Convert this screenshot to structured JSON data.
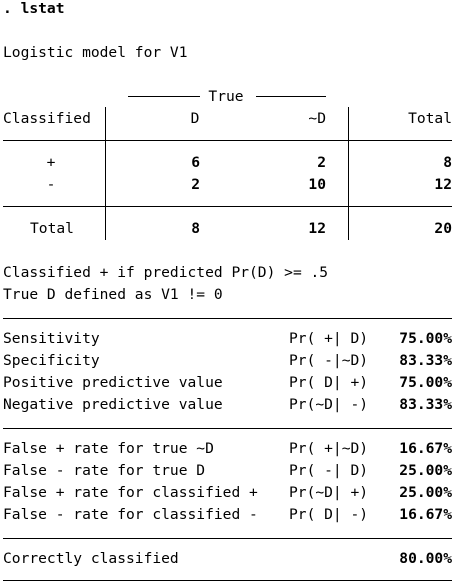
{
  "command": ". lstat",
  "model_title": "Logistic model for V1",
  "table": {
    "group_header": "True",
    "row_header": "Classified",
    "col_d": "D",
    "col_notd": "~D",
    "col_total": "Total",
    "rows": [
      {
        "label": "+",
        "d": "6",
        "notd": "2",
        "total": "8"
      },
      {
        "label": "-",
        "d": "2",
        "notd": "10",
        "total": "12"
      }
    ],
    "total_row": {
      "label": "Total",
      "d": "8",
      "notd": "12",
      "total": "20"
    }
  },
  "notes": [
    "Classified + if predicted Pr(D) >= .5",
    "True D defined as V1 != 0"
  ],
  "stats_group1": [
    {
      "label": "Sensitivity",
      "cond": "Pr( +| D)",
      "value": "75.00%"
    },
    {
      "label": "Specificity",
      "cond": "Pr( -|~D)",
      "value": "83.33%"
    },
    {
      "label": "Positive predictive value",
      "cond": "Pr( D| +)",
      "value": "75.00%"
    },
    {
      "label": "Negative predictive value",
      "cond": "Pr(~D| -)",
      "value": "83.33%"
    }
  ],
  "stats_group2": [
    {
      "label": "False + rate for true ~D",
      "cond": "Pr( +|~D)",
      "value": "16.67%"
    },
    {
      "label": "False - rate for true D",
      "cond": "Pr( -| D)",
      "value": "25.00%"
    },
    {
      "label": "False + rate for classified +",
      "cond": "Pr(~D| +)",
      "value": "25.00%"
    },
    {
      "label": "False - rate for classified -",
      "cond": "Pr( D| -)",
      "value": "16.67%"
    }
  ],
  "correct": {
    "label": "Correctly classified",
    "value": "80.00%"
  }
}
